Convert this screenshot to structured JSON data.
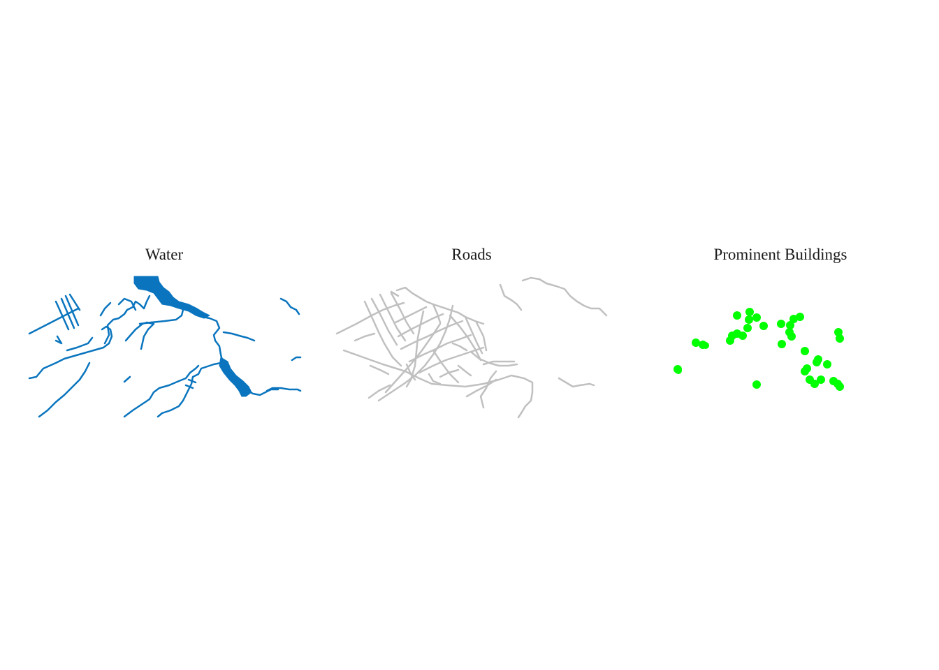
{
  "panels": {
    "water": {
      "title": "Water",
      "color": "#0a75be"
    },
    "roads": {
      "title": "Roads",
      "color": "#c0c0c0"
    },
    "buildings": {
      "title": "Prominent Buildings",
      "color": "#00ff00"
    }
  }
}
